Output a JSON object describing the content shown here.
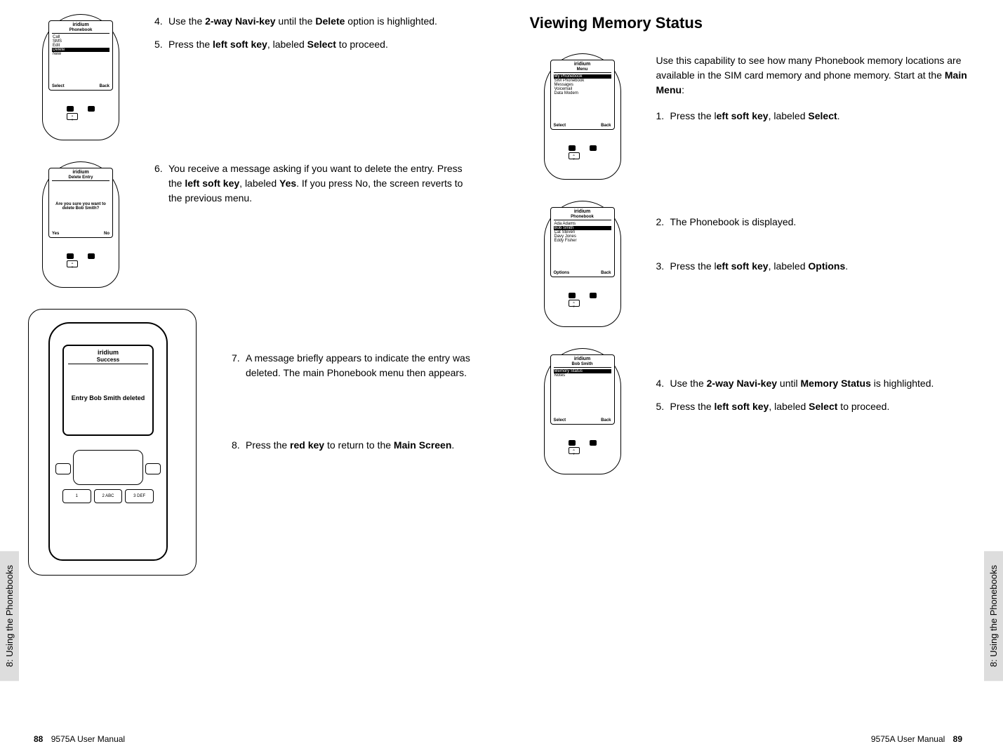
{
  "left": {
    "sideTab": "8: Using the Phonebooks",
    "footer": {
      "page": "88",
      "manual": "9575A User Manual"
    },
    "phones": [
      {
        "brand": "iridium",
        "title": "Phonebook",
        "items": [
          {
            "label": "Call",
            "hl": false
          },
          {
            "label": "SMS",
            "hl": false
          },
          {
            "label": "Edit",
            "hl": false
          },
          {
            "label": "Delete",
            "hl": true
          },
          {
            "label": "New",
            "hl": false
          }
        ],
        "softLeft": "Select",
        "softRight": "Back"
      },
      {
        "brand": "iridium",
        "title": "Delete Entry",
        "msg": "Are you sure you want to delete Bob Smith?",
        "softLeft": "Yes",
        "softRight": "No"
      },
      {
        "brand": "iridium",
        "title": "Success",
        "msg": "Entry Bob Smith deleted"
      }
    ],
    "steps": {
      "4": {
        "num": "4.",
        "text_a": "Use the ",
        "b1": "2-way Navi-key",
        "text_b": " until the ",
        "b2": "Delete",
        "text_c": " option is highlighted."
      },
      "5": {
        "num": "5.",
        "text_a": "Press the ",
        "b1": "left soft key",
        "text_b": ", labeled ",
        "b2": "Select",
        "text_c": " to proceed."
      },
      "6": {
        "num": "6.",
        "text_a": "You receive a message asking if you want to delete the entry. Press the ",
        "b1": "left soft key",
        "text_b": ", labeled ",
        "b2": "Yes",
        "text_c": ". If you press No, the screen reverts to the previous menu."
      },
      "7": {
        "num": "7.",
        "text_a": "A message briefly appears to indicate the entry was deleted. The main Phonebook menu then appears."
      },
      "8": {
        "num": "8.",
        "text_a": "Press the ",
        "b1": "red key",
        "text_b": " to return to the ",
        "b2": "Main Screen",
        "text_c": "."
      }
    }
  },
  "right": {
    "title": "Viewing Memory Status",
    "sideTab": "8: Using the Phonebooks",
    "footer": {
      "manual": "9575A User Manual",
      "page": "89"
    },
    "intro": {
      "text_a": "Use this capability to see how many Phonebook memory locations are available in the SIM card memory and phone memory. Start at the ",
      "b1": "Main Menu",
      "text_b": ":"
    },
    "phones": [
      {
        "brand": "iridium",
        "title": "Menu",
        "items": [
          {
            "label": "My Phonebook",
            "hl": true
          },
          {
            "label": "SIM Phonebook",
            "hl": false
          },
          {
            "label": "Messages",
            "hl": false
          },
          {
            "label": "Voicemail",
            "hl": false
          },
          {
            "label": "Data Modem",
            "hl": false
          }
        ],
        "softLeft": "Select",
        "softRight": "Back"
      },
      {
        "brand": "iridium",
        "title": "Phonebook",
        "items": [
          {
            "label": "Ada Adams",
            "hl": false
          },
          {
            "label": "Bob Smith",
            "hl": true
          },
          {
            "label": "Cat Steven",
            "hl": false
          },
          {
            "label": "Davy Jones",
            "hl": false
          },
          {
            "label": "Eddy Fisher",
            "hl": false
          }
        ],
        "softLeft": "Options",
        "softRight": "Back"
      },
      {
        "brand": "iridium",
        "title": "Bob Smith",
        "items": [
          {
            "label": "Memory Status",
            "hl": true
          },
          {
            "label": "Notes",
            "hl": false
          }
        ],
        "softLeft": "Select",
        "softRight": "Back"
      }
    ],
    "steps": {
      "1": {
        "num": "1.",
        "text_a": "Press the l",
        "b1": "eft soft key",
        "text_b": ", labeled ",
        "b2": "Select",
        "text_c": "."
      },
      "2": {
        "num": "2.",
        "text_a": "The Phonebook is displayed."
      },
      "3": {
        "num": "3.",
        "text_a": "Press the l",
        "b1": "eft soft key",
        "text_b": ", labeled ",
        "b2": "Options",
        "text_c": "."
      },
      "4": {
        "num": "4.",
        "text_a": "Use the ",
        "b1": "2-way Navi-key",
        "text_b": " until ",
        "b2": "Memory Status",
        "text_c": " is highlighted."
      },
      "5": {
        "num": "5.",
        "text_a": "Press the ",
        "b1": "left soft key",
        "text_b": ", labeled ",
        "b2": "Select",
        "text_c": " to proceed."
      }
    }
  }
}
